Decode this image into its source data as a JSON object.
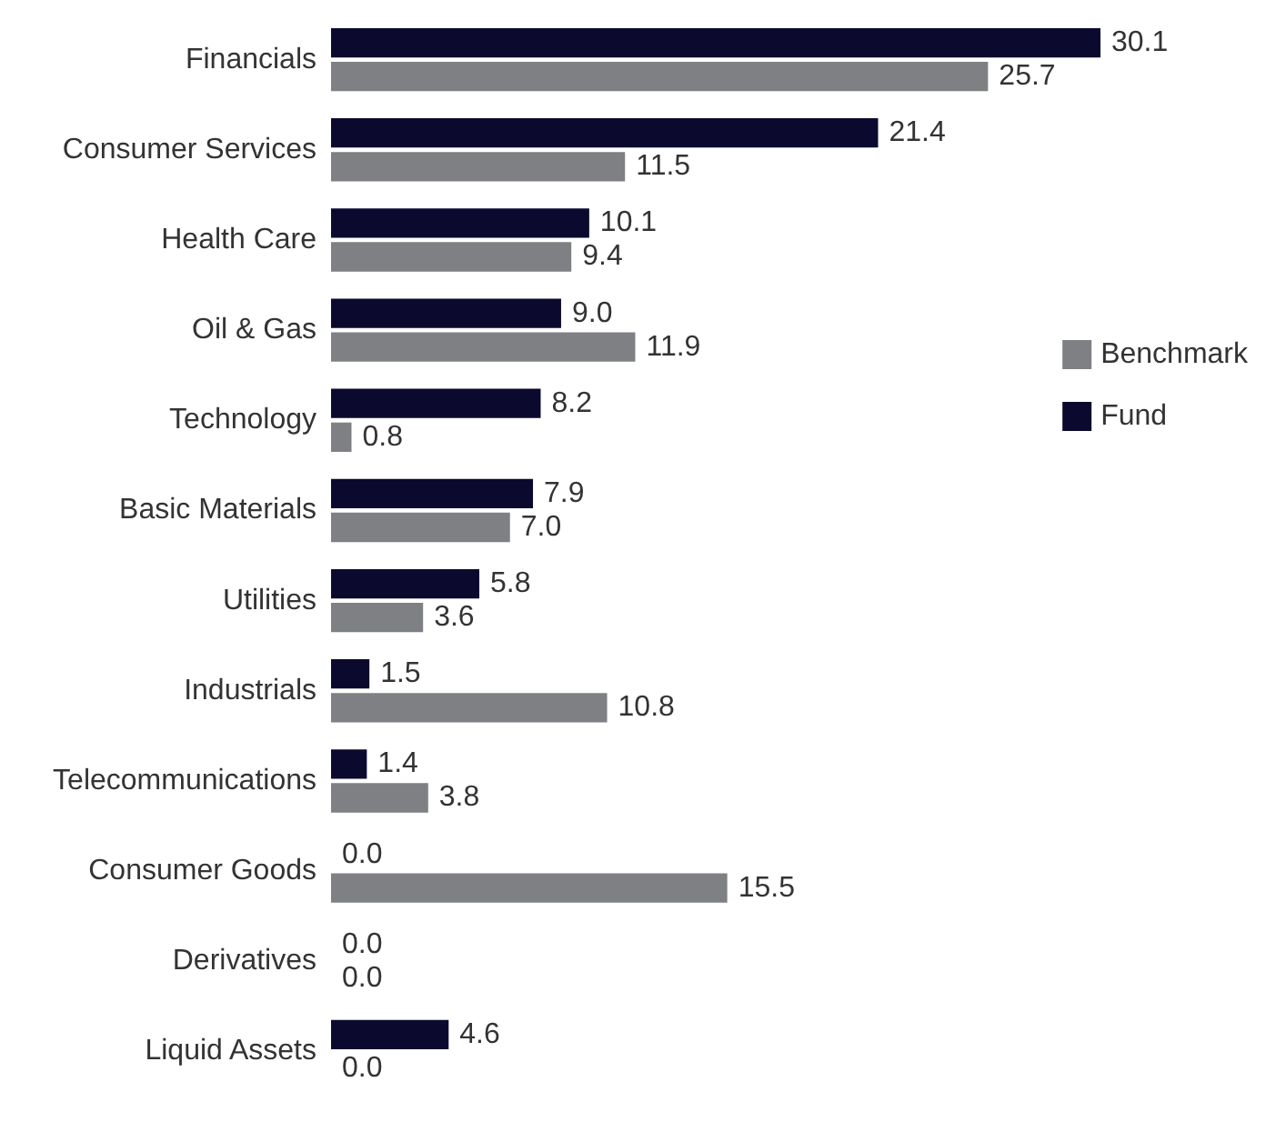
{
  "chart_data": {
    "type": "bar",
    "orientation": "horizontal",
    "legend": "right",
    "categories": [
      "Financials",
      "Consumer Services",
      "Health Care",
      "Oil & Gas",
      "Technology",
      "Basic Materials",
      "Utilities",
      "Industrials",
      "Telecommunications",
      "Consumer Goods",
      "Derivatives",
      "Liquid Assets"
    ],
    "series": [
      {
        "name": "Fund",
        "color": "#0b0a2e",
        "values": [
          30.1,
          21.4,
          10.1,
          9.0,
          8.2,
          7.9,
          5.8,
          1.5,
          1.4,
          0.0,
          0.0,
          4.6
        ],
        "value_labels": [
          "30.1",
          "21.4",
          "10.1",
          "9.0",
          "8.2",
          "7.9",
          "5.8",
          "1.5",
          "1.4",
          "0.0",
          "0.0",
          "4.6"
        ]
      },
      {
        "name": "Benchmark",
        "color": "#7f8083",
        "values": [
          25.7,
          11.5,
          9.4,
          11.9,
          0.8,
          7.0,
          3.6,
          10.8,
          3.8,
          15.5,
          0.0,
          0.0
        ],
        "value_labels": [
          "25.7",
          "11.5",
          "9.4",
          "11.9",
          "0.8",
          "7.0",
          "3.6",
          "10.8",
          "3.8",
          "15.5",
          "0.0",
          "0.0"
        ]
      }
    ]
  }
}
